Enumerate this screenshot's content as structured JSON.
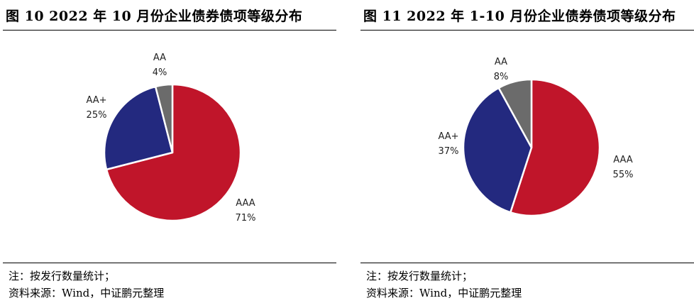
{
  "chart_data": [
    {
      "type": "pie",
      "title": "图 10    2022 年 10 月份企业债券债项等级分布",
      "slices": [
        {
          "label": "AAA",
          "value": 71,
          "value_label": "71%",
          "color": "#c0152a"
        },
        {
          "label": "AA+",
          "value": 25,
          "value_label": "25%",
          "color": "#23297f"
        },
        {
          "label": "AA",
          "value": 4,
          "value_label": "4%",
          "color": "#6b6b6b"
        }
      ],
      "note": "注：按发行数量统计；",
      "source": "资料来源：Wind，中证鹏元整理"
    },
    {
      "type": "pie",
      "title": "图 11    2022 年 1-10 月份企业债券债项等级分布",
      "slices": [
        {
          "label": "AAA",
          "value": 55,
          "value_label": "55%",
          "color": "#c0152a"
        },
        {
          "label": "AA+",
          "value": 37,
          "value_label": "37%",
          "color": "#23297f"
        },
        {
          "label": "AA",
          "value": 8,
          "value_label": "8%",
          "color": "#6b6b6b"
        }
      ],
      "note": "注：按发行数量统计；",
      "source": "资料来源：Wind，中证鹏元整理"
    }
  ]
}
